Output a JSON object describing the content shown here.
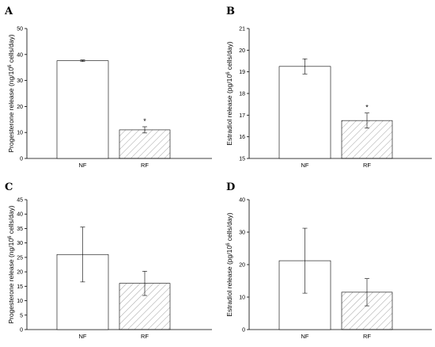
{
  "chart_data": [
    {
      "type": "bar",
      "panel": "A",
      "categories": [
        "NF",
        "RF"
      ],
      "values": [
        37.6,
        11.0
      ],
      "errors": [
        0.3,
        1.2
      ],
      "significance": [
        "",
        "*"
      ],
      "ylabel": {
        "pre": "Progesterone release (ng/10",
        "sup": "6",
        "post": " cells/day)"
      },
      "ylim": [
        0,
        50
      ],
      "yticks": [
        0,
        10,
        20,
        30,
        40,
        50
      ],
      "patterns": [
        "none",
        "hatched"
      ]
    },
    {
      "type": "bar",
      "panel": "B",
      "categories": [
        "NF",
        "RF"
      ],
      "values": [
        19.25,
        16.75
      ],
      "errors": [
        0.35,
        0.35
      ],
      "significance": [
        "",
        "*"
      ],
      "ylabel": {
        "pre": "Estradiol release (pg/10",
        "sup": "6",
        "post": " cells/day)"
      },
      "ylim": [
        15,
        21
      ],
      "yticks": [
        15,
        16,
        17,
        18,
        19,
        20,
        21
      ],
      "patterns": [
        "none",
        "hatched"
      ]
    },
    {
      "type": "bar",
      "panel": "C",
      "categories": [
        "NF",
        "RF"
      ],
      "values": [
        26.0,
        16.0
      ],
      "errors": [
        9.5,
        4.2
      ],
      "significance": [
        "",
        ""
      ],
      "ylabel": {
        "pre": "Progesterone release (ng/10",
        "sup": "6",
        "post": " cells/day)"
      },
      "ylim": [
        0,
        45
      ],
      "yticks": [
        0,
        5,
        10,
        15,
        20,
        25,
        30,
        35,
        40,
        45
      ],
      "patterns": [
        "none",
        "hatched"
      ]
    },
    {
      "type": "bar",
      "panel": "D",
      "categories": [
        "NF",
        "RF"
      ],
      "values": [
        21.2,
        11.5
      ],
      "errors": [
        10.0,
        4.2
      ],
      "significance": [
        "",
        ""
      ],
      "ylabel": {
        "pre": "Estradiol release (pg/10",
        "sup": "6",
        "post": " cells/day)"
      },
      "ylim": [
        0,
        40
      ],
      "yticks": [
        0,
        10,
        20,
        30,
        40
      ],
      "patterns": [
        "none",
        "hatched"
      ]
    }
  ]
}
